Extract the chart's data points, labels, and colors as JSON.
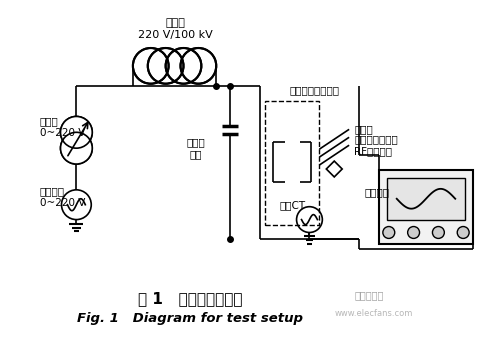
{
  "title_cn": "图 1   试验系统示意图",
  "title_en": "Fig. 1   Diagram for test setup",
  "bg_color": "#ffffff",
  "line_color": "#000000",
  "labels": {
    "transformer": "变压器\n220 V/100 kV",
    "regulator": "调压器\n0~220 V",
    "ac_source": "交流电源\n0~220 V",
    "cap_divider": "电容分\n压器",
    "switchgear": "开关柜模拟放电腔",
    "high_freq_ct": "高频CT",
    "discharge_point": "放电点",
    "e_field_sensor": "微分电场传感器",
    "rf_antenna": "RF环形天线",
    "measurement": "测量仪器"
  }
}
